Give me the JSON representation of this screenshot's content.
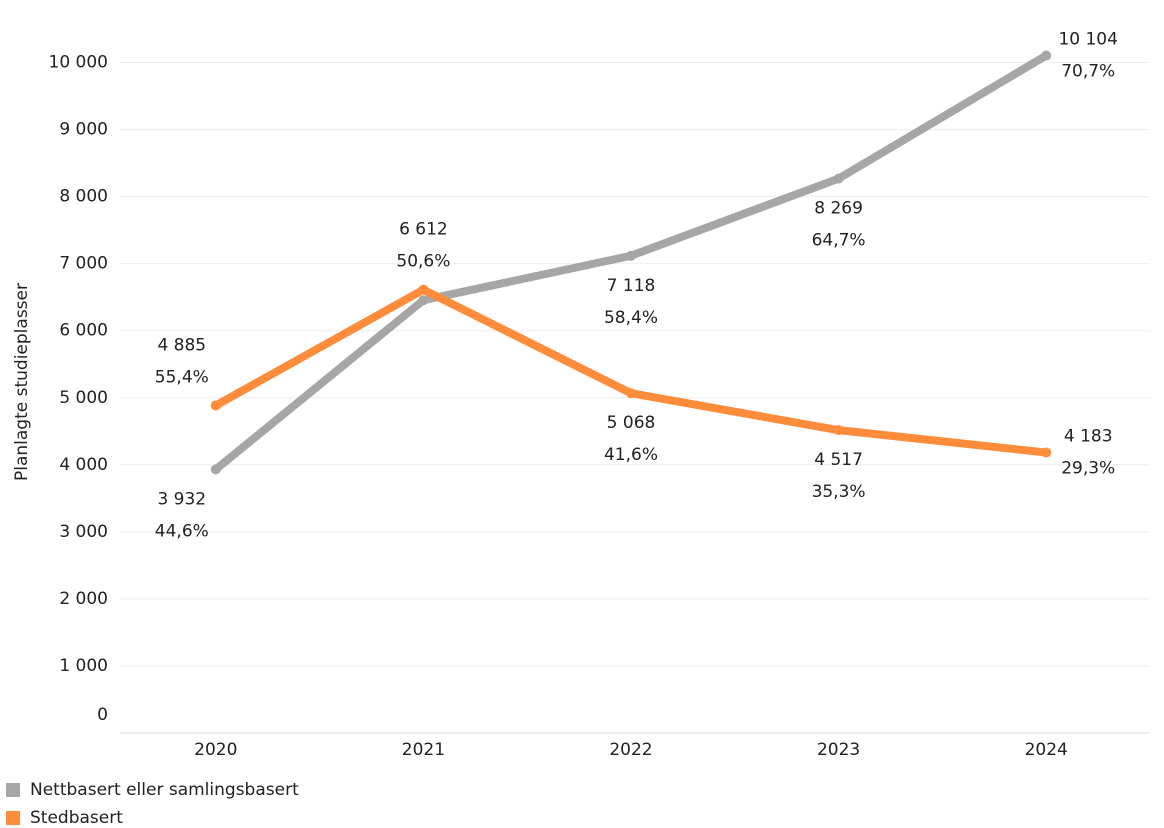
{
  "chart_data": {
    "type": "line",
    "y_label": "Planlagte studieplasser",
    "categories": [
      "2020",
      "2021",
      "2022",
      "2023",
      "2024"
    ],
    "series": [
      {
        "name": "Nettbasert eller samlingsbasert",
        "color": "#a6a6a6",
        "values": [
          3932,
          6455,
          7118,
          8269,
          10104
        ],
        "value_labels": [
          "3 932",
          null,
          "7 118",
          "8 269",
          "10 104"
        ],
        "share_labels": [
          "44,6%",
          null,
          "58,4%",
          "64,7%",
          "70,7%"
        ]
      },
      {
        "name": "Stedbasert",
        "color": "#ff8c3a",
        "values": [
          4885,
          6612,
          5068,
          4517,
          4183
        ],
        "value_labels": [
          "4 885",
          "6 612",
          "5 068",
          "4 517",
          "4 183"
        ],
        "share_labels": [
          "55,4%",
          "50,6%",
          "41,6%",
          "35,3%",
          "29,3%"
        ]
      }
    ],
    "ylim": [
      0,
      10500
    ],
    "yticks": [
      0,
      {
        "value": 1000,
        "label": "1 000"
      },
      {
        "value": 2000,
        "label": "2 000"
      },
      {
        "value": 3000,
        "label": "3 000"
      },
      {
        "value": 4000,
        "label": "4 000"
      },
      {
        "value": 5000,
        "label": "5 000"
      },
      {
        "value": 6000,
        "label": "6 000"
      },
      {
        "value": 7000,
        "label": "7 000"
      },
      {
        "value": 8000,
        "label": "8 000"
      },
      {
        "value": 9000,
        "label": "9 000"
      },
      {
        "value": 10000,
        "label": "10 000"
      }
    ],
    "grid": true
  }
}
